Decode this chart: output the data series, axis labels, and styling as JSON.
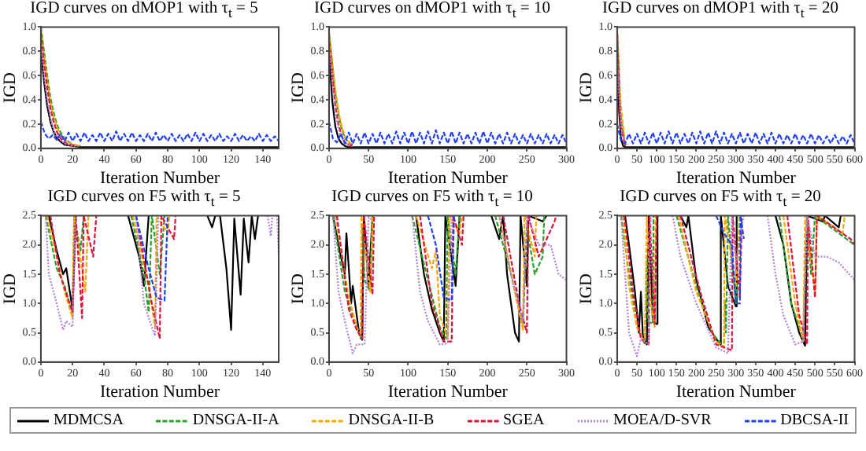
{
  "chart_data": [
    {
      "type": "line",
      "title": "IGD curves on dMOP1 with τ$_{t}$ = 5",
      "xlabel": "Iteration Number",
      "ylabel": "IGD",
      "xlim": [
        0,
        150
      ],
      "xticks": [
        0,
        20,
        40,
        60,
        80,
        100,
        120,
        140
      ],
      "ylim": [
        0,
        1
      ],
      "yticks": [
        {
          "value": 0,
          "label": "0.0"
        },
        {
          "value": 0.2,
          "label": "0.2"
        },
        {
          "value": 0.4,
          "label": "0.4"
        },
        {
          "value": 0.6,
          "label": "0.6"
        },
        {
          "value": 0.8,
          "label": "0.8"
        },
        {
          "value": 1,
          "label": "1.0"
        }
      ],
      "legend": "bottom",
      "series": [
        {
          "name": "MDMCSA",
          "color": "#000000",
          "line_style": "solid",
          "x": [
            0,
            2,
            4,
            6,
            8,
            10,
            12,
            15,
            20,
            25,
            30,
            50,
            80,
            110,
            150
          ],
          "values": [
            0.8,
            0.55,
            0.35,
            0.22,
            0.14,
            0.09,
            0.06,
            0.03,
            0.02,
            0.01,
            0.01,
            0.01,
            0.01,
            0.01,
            0.01
          ]
        },
        {
          "name": "DNSGA-II-A",
          "color": "#2ca02c",
          "line_style": "dashed",
          "x": [
            0,
            2,
            4,
            6,
            8,
            10,
            12,
            15,
            20,
            25
          ],
          "values": [
            1.0,
            0.8,
            0.6,
            0.42,
            0.3,
            0.2,
            0.14,
            0.08,
            0.03,
            0.02
          ]
        },
        {
          "name": "DNSGA-II-B",
          "color": "#ffa500",
          "line_style": "dashed",
          "x": [
            0,
            2,
            4,
            6,
            8,
            10,
            12,
            15,
            20,
            25
          ],
          "values": [
            0.98,
            0.76,
            0.56,
            0.38,
            0.26,
            0.18,
            0.12,
            0.07,
            0.03,
            0.02
          ]
        },
        {
          "name": "SGEA",
          "color": "#dc143c",
          "line_style": "dashed",
          "x": [
            0,
            2,
            4,
            6,
            8,
            10,
            12,
            15,
            18,
            22
          ],
          "values": [
            0.95,
            0.7,
            0.5,
            0.33,
            0.22,
            0.14,
            0.09,
            0.05,
            0.03,
            0.02
          ]
        },
        {
          "name": "MOEA/D-SVR",
          "color": "#b57edc",
          "line_style": "dotted",
          "x": [
            0,
            2,
            4,
            6,
            8,
            10,
            12,
            15,
            20,
            25
          ],
          "values": [
            0.9,
            0.6,
            0.4,
            0.25,
            0.15,
            0.1,
            0.07,
            0.04,
            0.02,
            0.02
          ]
        },
        {
          "name": "DBCSA-II",
          "color": "#1f3fff",
          "line_style": "dashed",
          "x": [
            0,
            2.5,
            5,
            7.5,
            10,
            12.5,
            15,
            17.5,
            20,
            22.5,
            25,
            27.5,
            30,
            32.5,
            35,
            37.5,
            40,
            42.5,
            45,
            47.5,
            50,
            52.5,
            55,
            57.5,
            60,
            62.5,
            65,
            67.5,
            70,
            72.5,
            75,
            77.5,
            80,
            82.5,
            85,
            87.5,
            90,
            92.5,
            95,
            97.5,
            100,
            102.5,
            105,
            107.5,
            110,
            112.5,
            115,
            117.5,
            120,
            122.5,
            125,
            127.5,
            130,
            132.5,
            135,
            137.5,
            140,
            142.5,
            145,
            147.5,
            150
          ],
          "values": [
            0.22,
            0.12,
            0.08,
            0.11,
            0.07,
            0.12,
            0.06,
            0.13,
            0.06,
            0.12,
            0.06,
            0.13,
            0.06,
            0.11,
            0.06,
            0.13,
            0.06,
            0.12,
            0.06,
            0.14,
            0.06,
            0.12,
            0.06,
            0.13,
            0.06,
            0.11,
            0.06,
            0.12,
            0.06,
            0.13,
            0.06,
            0.11,
            0.06,
            0.12,
            0.06,
            0.11,
            0.06,
            0.12,
            0.06,
            0.13,
            0.06,
            0.12,
            0.06,
            0.11,
            0.06,
            0.12,
            0.06,
            0.1,
            0.06,
            0.12,
            0.06,
            0.11,
            0.06,
            0.1,
            0.06,
            0.12,
            0.06,
            0.11,
            0.06,
            0.1,
            0.06
          ]
        }
      ]
    },
    {
      "type": "line",
      "title": "IGD curves on dMOP1 with τ$_{t}$ = 10",
      "xlabel": "Iteration Number",
      "ylabel": "IGD",
      "xlim": [
        0,
        300
      ],
      "xticks": [
        0,
        50,
        100,
        150,
        200,
        250,
        300
      ],
      "ylim": [
        0,
        1
      ],
      "yticks": [
        {
          "value": 0,
          "label": "0.0"
        },
        {
          "value": 0.2,
          "label": "0.2"
        },
        {
          "value": 0.4,
          "label": "0.4"
        },
        {
          "value": 0.6,
          "label": "0.6"
        },
        {
          "value": 0.8,
          "label": "0.8"
        },
        {
          "value": 1,
          "label": "1.0"
        }
      ],
      "series": [
        {
          "color": "#000000",
          "line_style": "solid",
          "x": [
            0,
            4,
            8,
            12,
            16,
            20,
            24,
            30,
            40,
            60,
            100,
            160,
            220,
            300
          ],
          "values": [
            0.8,
            0.4,
            0.18,
            0.08,
            0.04,
            0.02,
            0.01,
            0.01,
            0.01,
            0.01,
            0.01,
            0.01,
            0.01,
            0.01
          ]
        },
        {
          "color": "#2ca02c",
          "line_style": "dashed",
          "x": [
            0,
            4,
            8,
            12,
            16,
            20,
            24,
            30
          ],
          "values": [
            0.95,
            0.7,
            0.45,
            0.28,
            0.16,
            0.09,
            0.05,
            0.03
          ]
        },
        {
          "color": "#ffa500",
          "line_style": "dashed",
          "x": [
            0,
            4,
            8,
            12,
            16,
            20,
            24,
            30
          ],
          "values": [
            0.97,
            0.72,
            0.48,
            0.3,
            0.18,
            0.1,
            0.06,
            0.03
          ]
        },
        {
          "color": "#dc143c",
          "line_style": "dashed",
          "x": [
            0,
            4,
            8,
            12,
            16,
            20,
            24,
            30
          ],
          "values": [
            0.93,
            0.6,
            0.35,
            0.2,
            0.1,
            0.05,
            0.03,
            0.02
          ]
        },
        {
          "color": "#b57edc",
          "line_style": "dotted",
          "x": [
            0,
            4,
            8,
            12,
            16,
            20,
            24,
            30
          ],
          "values": [
            0.9,
            0.55,
            0.3,
            0.16,
            0.09,
            0.05,
            0.03,
            0.02
          ]
        },
        {
          "color": "#1f3fff",
          "line_style": "dashed",
          "x": [
            0,
            5,
            10,
            15,
            20,
            25,
            30,
            35,
            40,
            45,
            50,
            55,
            60,
            65,
            70,
            75,
            80,
            85,
            90,
            95,
            100,
            105,
            110,
            115,
            120,
            125,
            130,
            135,
            140,
            145,
            150,
            155,
            160,
            165,
            170,
            175,
            180,
            185,
            190,
            195,
            200,
            205,
            210,
            215,
            220,
            225,
            230,
            235,
            240,
            245,
            250,
            255,
            260,
            265,
            270,
            275,
            280,
            285,
            290,
            295,
            300
          ],
          "values": [
            0.22,
            0.08,
            0.05,
            0.12,
            0.04,
            0.13,
            0.04,
            0.12,
            0.04,
            0.13,
            0.04,
            0.12,
            0.04,
            0.13,
            0.04,
            0.12,
            0.04,
            0.14,
            0.04,
            0.13,
            0.04,
            0.14,
            0.04,
            0.13,
            0.04,
            0.14,
            0.04,
            0.15,
            0.04,
            0.13,
            0.04,
            0.14,
            0.04,
            0.13,
            0.04,
            0.12,
            0.04,
            0.13,
            0.04,
            0.14,
            0.04,
            0.13,
            0.04,
            0.12,
            0.04,
            0.13,
            0.04,
            0.12,
            0.04,
            0.11,
            0.04,
            0.12,
            0.04,
            0.11,
            0.04,
            0.12,
            0.04,
            0.11,
            0.04,
            0.11,
            0.04
          ]
        }
      ]
    },
    {
      "type": "line",
      "title": "IGD curves on dMOP1 with τ$_{t}$ = 20",
      "xlabel": "Iteration Number",
      "ylabel": "IGD",
      "xlim": [
        0,
        600
      ],
      "xticks": [
        0,
        50,
        100,
        150,
        200,
        250,
        300,
        350,
        400,
        450,
        500,
        550,
        600
      ],
      "ylim": [
        0,
        1
      ],
      "yticks": [
        {
          "value": 0,
          "label": "0.0"
        },
        {
          "value": 0.2,
          "label": "0.2"
        },
        {
          "value": 0.4,
          "label": "0.4"
        },
        {
          "value": 0.6,
          "label": "0.6"
        },
        {
          "value": 0.8,
          "label": "0.8"
        },
        {
          "value": 1,
          "label": "1.0"
        }
      ],
      "series": [
        {
          "color": "#000000",
          "line_style": "solid",
          "x": [
            0,
            5,
            10,
            15,
            20,
            50,
            100,
            200,
            300,
            450,
            600
          ],
          "values": [
            0.85,
            0.3,
            0.08,
            0.02,
            0.01,
            0.01,
            0.01,
            0.01,
            0.01,
            0.01,
            0.01
          ]
        },
        {
          "color": "#2ca02c",
          "line_style": "dashed",
          "x": [
            0,
            8,
            20
          ],
          "values": [
            0.98,
            0.3,
            0.02
          ]
        },
        {
          "color": "#ffa500",
          "line_style": "dashed",
          "x": [
            0,
            8,
            20
          ],
          "values": [
            1.0,
            0.4,
            0.03
          ]
        },
        {
          "color": "#dc143c",
          "line_style": "dashed",
          "x": [
            0,
            8,
            20
          ],
          "values": [
            0.95,
            0.2,
            0.02
          ]
        },
        {
          "color": "#b57edc",
          "line_style": "dotted",
          "x": [
            0,
            12,
            25
          ],
          "values": [
            0.7,
            0.1,
            0.03
          ]
        },
        {
          "color": "#1f3fff",
          "line_style": "dashed",
          "x": [
            0,
            10,
            20,
            30,
            40,
            50,
            60,
            70,
            80,
            90,
            100,
            110,
            120,
            130,
            140,
            150,
            160,
            170,
            180,
            190,
            200,
            210,
            220,
            230,
            240,
            250,
            260,
            270,
            280,
            290,
            300,
            310,
            320,
            330,
            340,
            350,
            360,
            370,
            380,
            390,
            400,
            410,
            420,
            430,
            440,
            450,
            460,
            470,
            480,
            490,
            500,
            510,
            520,
            530,
            540,
            550,
            560,
            570,
            580,
            590,
            600
          ],
          "values": [
            0.2,
            0.06,
            0.04,
            0.12,
            0.04,
            0.12,
            0.04,
            0.13,
            0.04,
            0.13,
            0.04,
            0.13,
            0.04,
            0.14,
            0.04,
            0.13,
            0.04,
            0.12,
            0.04,
            0.13,
            0.04,
            0.14,
            0.04,
            0.13,
            0.04,
            0.14,
            0.04,
            0.13,
            0.04,
            0.12,
            0.04,
            0.13,
            0.04,
            0.12,
            0.04,
            0.13,
            0.04,
            0.12,
            0.04,
            0.13,
            0.04,
            0.12,
            0.04,
            0.11,
            0.04,
            0.12,
            0.04,
            0.11,
            0.04,
            0.12,
            0.04,
            0.11,
            0.04,
            0.1,
            0.04,
            0.11,
            0.04,
            0.1,
            0.04,
            0.11,
            0.04
          ]
        }
      ]
    },
    {
      "type": "line",
      "title": "IGD curves on F5 with τ$_{t}$ = 5",
      "xlabel": "Iteration Number",
      "ylabel": "IGD",
      "xlim": [
        0,
        150
      ],
      "xticks": [
        0,
        20,
        40,
        60,
        80,
        100,
        120,
        140
      ],
      "ylim": [
        0,
        2.5
      ],
      "yticks": [
        {
          "value": 0,
          "label": "0.0"
        },
        {
          "value": 0.5,
          "label": "0.5"
        },
        {
          "value": 1,
          "label": "1.0"
        },
        {
          "value": 1.5,
          "label": "1.5"
        },
        {
          "value": 2,
          "label": "2.0"
        },
        {
          "value": 2.5,
          "label": "2.5"
        }
      ],
      "series": [
        {
          "color": "#000000",
          "line_style": "solid",
          "x": [
            5,
            10,
            14,
            16,
            20,
            22,
            40,
            55,
            62,
            65,
            68,
            90,
            105,
            108,
            110,
            113,
            117,
            120,
            122,
            126,
            128,
            131,
            133,
            135,
            137
          ],
          "values": [
            2.5,
            1.9,
            1.5,
            1.6,
            0.9,
            2.5,
            null,
            2.5,
            1.8,
            1.3,
            2.5,
            null,
            2.5,
            2.3,
            2.5,
            2.5,
            1.6,
            0.55,
            2.45,
            1.15,
            2.45,
            1.7,
            2.5,
            2.1,
            2.5
          ]
        },
        {
          "color": "#2ca02c",
          "line_style": "dashed",
          "x": [
            3,
            10,
            15,
            20,
            21,
            25,
            27,
            40,
            57,
            65,
            68,
            70,
            75,
            78
          ],
          "values": [
            2.5,
            1.6,
            1.3,
            0.8,
            2.5,
            1.9,
            2.5,
            null,
            2.5,
            1.5,
            0.85,
            2.5,
            1.5,
            2.5
          ]
        },
        {
          "color": "#ffa500",
          "line_style": "dashed",
          "x": [
            4,
            10,
            15,
            20,
            21,
            28,
            30,
            40,
            58,
            68,
            72,
            73,
            80,
            81
          ],
          "values": [
            2.5,
            1.8,
            1.2,
            0.75,
            2.5,
            1.2,
            2.5,
            null,
            2.5,
            1.3,
            0.6,
            2.5,
            2.2,
            2.5
          ]
        },
        {
          "color": "#dc143c",
          "line_style": "dashed",
          "x": [
            6,
            12,
            20,
            22,
            26,
            27,
            33,
            35,
            45,
            60,
            70,
            75,
            76,
            84,
            85
          ],
          "values": [
            2.5,
            1.5,
            0.85,
            2.5,
            0.75,
            2.5,
            1.8,
            2.5,
            null,
            2.5,
            1.0,
            0.4,
            2.5,
            2.1,
            2.5
          ]
        },
        {
          "color": "#b57edc",
          "line_style": "dotted",
          "x": [
            3,
            5,
            10,
            14,
            16,
            20,
            22,
            40,
            60,
            65,
            70,
            72,
            74,
            100,
            143,
            145,
            146,
            147,
            149,
            150
          ],
          "values": [
            2.5,
            1.5,
            1.0,
            0.55,
            0.7,
            0.6,
            2.5,
            null,
            2.5,
            1.0,
            0.6,
            0.45,
            2.5,
            null,
            2.5,
            2.15,
            2.5,
            null,
            2.5,
            1.8
          ]
        },
        {
          "color": "#1f3fff",
          "line_style": "dashed",
          "x": [
            60,
            68,
            73,
            78,
            80
          ],
          "values": [
            2.5,
            1.6,
            1.1,
            1.05,
            2.5
          ]
        }
      ]
    },
    {
      "type": "line",
      "title": "IGD curves on F5 with τ$_{t}$ = 10",
      "xlabel": "Iteration Number",
      "ylabel": "IGD",
      "xlim": [
        0,
        300
      ],
      "xticks": [
        0,
        50,
        100,
        150,
        200,
        250,
        300
      ],
      "ylim": [
        0,
        2.5
      ],
      "yticks": [
        {
          "value": 0,
          "label": "0.0"
        },
        {
          "value": 0.5,
          "label": "0.5"
        },
        {
          "value": 1,
          "label": "1.0"
        },
        {
          "value": 1.5,
          "label": "1.5"
        },
        {
          "value": 2,
          "label": "2.0"
        },
        {
          "value": 2.5,
          "label": "2.5"
        }
      ],
      "series": [
        {
          "color": "#000000",
          "line_style": "solid",
          "x": [
            5,
            15,
            20,
            22,
            28,
            30,
            38,
            42,
            44,
            50,
            55,
            80,
            110,
            120,
            130,
            140,
            145,
            147,
            160,
            165,
            185,
            205,
            215,
            220,
            225,
            235,
            240,
            242,
            250,
            252,
            270,
            275
          ],
          "values": [
            2.5,
            1.8,
            1.5,
            2.2,
            1.0,
            1.3,
            0.5,
            0.38,
            2.5,
            1.3,
            2.5,
            null,
            2.5,
            1.5,
            0.9,
            0.5,
            0.35,
            2.5,
            1.3,
            2.5,
            null,
            2.5,
            2.1,
            2.5,
            1.5,
            0.5,
            0.35,
            2.5,
            1.3,
            2.5,
            2.4,
            2.5
          ]
        },
        {
          "color": "#2ca02c",
          "line_style": "dashed",
          "x": [
            5,
            20,
            30,
            40,
            42,
            45,
            52,
            55,
            80,
            105,
            125,
            140,
            148,
            150,
            160,
            165,
            185,
            210,
            230,
            245,
            250,
            260,
            270,
            272
          ],
          "values": [
            2.5,
            1.2,
            0.8,
            0.4,
            2.3,
            1.4,
            1.2,
            2.5,
            null,
            2.5,
            1.4,
            0.6,
            0.4,
            2.5,
            1.5,
            2.5,
            null,
            2.5,
            1.5,
            0.6,
            2.3,
            1.5,
            1.8,
            2.5
          ]
        },
        {
          "color": "#ffa500",
          "line_style": "dashed",
          "x": [
            8,
            25,
            35,
            40,
            41,
            52,
            55,
            80,
            110,
            130,
            135,
            140,
            150,
            152,
            165,
            168,
            185,
            215,
            235,
            245,
            247,
            260,
            262
          ],
          "values": [
            2.5,
            1.1,
            0.6,
            0.45,
            2.5,
            1.2,
            2.5,
            null,
            2.5,
            1.6,
            1.9,
            0.8,
            0.4,
            2.5,
            2.2,
            2.5,
            null,
            2.5,
            1.2,
            0.55,
            2.5,
            1.8,
            2.5
          ]
        },
        {
          "color": "#dc143c",
          "line_style": "dashed",
          "x": [
            10,
            25,
            35,
            42,
            44,
            55,
            57,
            80,
            115,
            130,
            145,
            155,
            157,
            168,
            170,
            190,
            220,
            240,
            250,
            252,
            265,
            285,
            287
          ],
          "values": [
            2.5,
            0.9,
            0.55,
            0.4,
            2.5,
            1.15,
            2.5,
            null,
            2.5,
            1.0,
            0.35,
            0.35,
            2.5,
            2.0,
            2.5,
            null,
            2.5,
            1.0,
            0.5,
            2.5,
            1.8,
            2.4,
            2.5
          ]
        },
        {
          "color": "#b57edc",
          "line_style": "dotted",
          "x": [
            5,
            12,
            20,
            30,
            35,
            45,
            50,
            55,
            80,
            105,
            115,
            125,
            140,
            150,
            155,
            185,
            215,
            230,
            245,
            250,
            265,
            280,
            290,
            300
          ],
          "values": [
            2.5,
            1.2,
            0.7,
            0.15,
            0.3,
            0.3,
            2.5,
            2.4,
            null,
            2.5,
            1.2,
            0.7,
            0.3,
            0.32,
            2.5,
            null,
            2.5,
            1.5,
            0.7,
            2.5,
            2.0,
            2.0,
            1.5,
            1.4
          ]
        },
        {
          "color": "#1f3fff",
          "line_style": "dashed",
          "x": [
            125,
            135,
            145,
            155,
            158
          ],
          "values": [
            2.5,
            2.0,
            1.1,
            1.05,
            2.5
          ]
        }
      ]
    },
    {
      "type": "line",
      "title": "IGD curves on F5 with τ$_{t}$ = 20",
      "xlabel": "Iteration Number",
      "ylabel": "IGD",
      "xlim": [
        0,
        600
      ],
      "xticks": [
        0,
        50,
        100,
        150,
        200,
        250,
        300,
        350,
        400,
        450,
        500,
        550,
        600
      ],
      "ylim": [
        0,
        2.5
      ],
      "yticks": [
        {
          "value": 0,
          "label": "0.0"
        },
        {
          "value": 0.5,
          "label": "0.5"
        },
        {
          "value": 1,
          "label": "1.0"
        },
        {
          "value": 1.5,
          "label": "1.5"
        },
        {
          "value": 2,
          "label": "2.0"
        },
        {
          "value": 2.5,
          "label": "2.5"
        }
      ],
      "series": [
        {
          "color": "#000000",
          "line_style": "solid",
          "x": [
            20,
            30,
            45,
            55,
            60,
            65,
            75,
            80,
            90,
            100,
            102,
            130,
            160,
            175,
            180,
            200,
            230,
            250,
            260,
            262,
            280,
            300,
            302,
            350,
            400,
            420,
            440,
            460,
            475,
            480,
            520,
            525,
            560,
            565
          ],
          "values": [
            2.5,
            2.0,
            1.2,
            0.5,
            1.2,
            0.45,
            0.3,
            2.5,
            0.7,
            0.65,
            2.5,
            null,
            2.5,
            2.3,
            2.5,
            1.4,
            0.6,
            0.4,
            0.3,
            2.5,
            1.3,
            0.95,
            2.5,
            null,
            2.5,
            2.0,
            1.0,
            0.5,
            0.28,
            2.5,
            2.4,
            2.5,
            2.3,
            2.5
          ]
        },
        {
          "color": "#2ca02c",
          "line_style": "dashed",
          "x": [
            10,
            30,
            50,
            70,
            75,
            78,
            90,
            92,
            120,
            150,
            200,
            240,
            270,
            272,
            275,
            280,
            300,
            310,
            360,
            410,
            440,
            470,
            480,
            490,
            500,
            560,
            600
          ],
          "values": [
            2.5,
            1.5,
            0.6,
            0.3,
            1.8,
            0.7,
            0.65,
            2.5,
            null,
            2.5,
            1.3,
            0.5,
            0.25,
            1.05,
            0.5,
            2.5,
            1.0,
            2.5,
            null,
            2.5,
            1.0,
            0.4,
            2.5,
            1.5,
            2.5,
            2.2,
            2.0
          ]
        },
        {
          "color": "#ffa500",
          "line_style": "dashed",
          "x": [
            15,
            30,
            50,
            70,
            75,
            85,
            95,
            97,
            120,
            155,
            200,
            250,
            270,
            272,
            300,
            312,
            360,
            420,
            450,
            470,
            475,
            500,
            505,
            570,
            575
          ],
          "values": [
            2.5,
            1.3,
            0.6,
            0.35,
            2.5,
            1.0,
            0.6,
            2.5,
            null,
            2.5,
            1.2,
            0.35,
            0.25,
            2.5,
            1.3,
            2.5,
            null,
            2.5,
            1.0,
            0.35,
            2.5,
            1.2,
            2.5,
            2.2,
            2.5
          ]
        },
        {
          "color": "#dc143c",
          "line_style": "dashed",
          "x": [
            18,
            40,
            60,
            80,
            82,
            95,
            100,
            130,
            160,
            210,
            250,
            290,
            292,
            310,
            315,
            370,
            430,
            460,
            480,
            482,
            500,
            505,
            590,
            600
          ],
          "values": [
            2.5,
            1.2,
            0.4,
            0.3,
            2.5,
            0.65,
            2.5,
            null,
            2.5,
            1.2,
            0.3,
            0.2,
            2.5,
            1.1,
            2.5,
            null,
            2.5,
            0.8,
            0.3,
            2.5,
            1.1,
            2.5,
            2.1,
            2.0
          ]
        },
        {
          "color": "#b57edc",
          "line_style": "dotted",
          "x": [
            10,
            20,
            30,
            50,
            60,
            80,
            85,
            110,
            140,
            160,
            200,
            250,
            280,
            290,
            300,
            320,
            350,
            380,
            400,
            420,
            450,
            470,
            480,
            500,
            530,
            560,
            600
          ],
          "values": [
            2.5,
            1.5,
            0.5,
            0.1,
            0.4,
            0.3,
            2.5,
            null,
            2.5,
            1.8,
            1.0,
            0.25,
            0.15,
            2.5,
            1.7,
            2.5,
            null,
            2.5,
            1.5,
            0.8,
            0.3,
            0.35,
            2.5,
            1.8,
            1.8,
            1.7,
            1.4
          ]
        },
        {
          "color": "#1f3fff",
          "line_style": "dashed",
          "x": [
            250,
            270,
            290,
            300,
            310,
            312,
            320
          ],
          "values": [
            2.5,
            2.2,
            2.0,
            1.0,
            1.0,
            2.5,
            2.1
          ]
        }
      ]
    }
  ]
}
